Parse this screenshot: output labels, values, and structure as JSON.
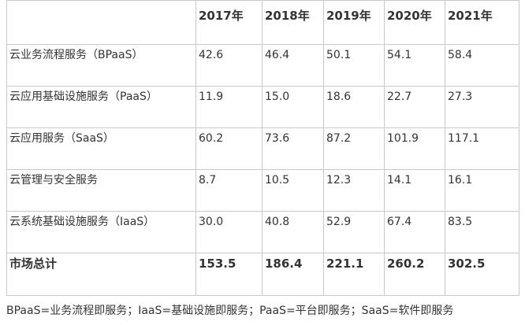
{
  "table": {
    "header": [
      "",
      "2017年",
      "2018年",
      "2019年",
      "2020年",
      "2021年"
    ],
    "rows": [
      [
        "云业务流程服务（BPaaS）",
        "42.6",
        "46.4",
        "50.1",
        "54.1",
        "58.4"
      ],
      [
        "云应用基础设施服务（PaaS）",
        "11.9",
        "15.0",
        "18.6",
        "22.7",
        "27.3"
      ],
      [
        "云应用服务（SaaS）",
        "60.2",
        "73.6",
        "87.2",
        "101.9",
        "117.1"
      ],
      [
        "云管理与安全服务",
        "8.7",
        "10.5",
        "12.3",
        "14.1",
        "16.1"
      ],
      [
        "云系统基础设施服务（IaaS）",
        "30.0",
        "40.8",
        "52.9",
        "67.4",
        "83.5"
      ]
    ],
    "total": [
      "市场总计",
      "153.5",
      "186.4",
      "221.1",
      "260.2",
      "302.5"
    ]
  },
  "footnote": "BPaaS=业务流程即服务；IaaS=基础设施即服务；PaaS=平台即服务；SaaS=软件即服务",
  "colors": {
    "border": "#c9c9c9",
    "text": "#333333"
  }
}
